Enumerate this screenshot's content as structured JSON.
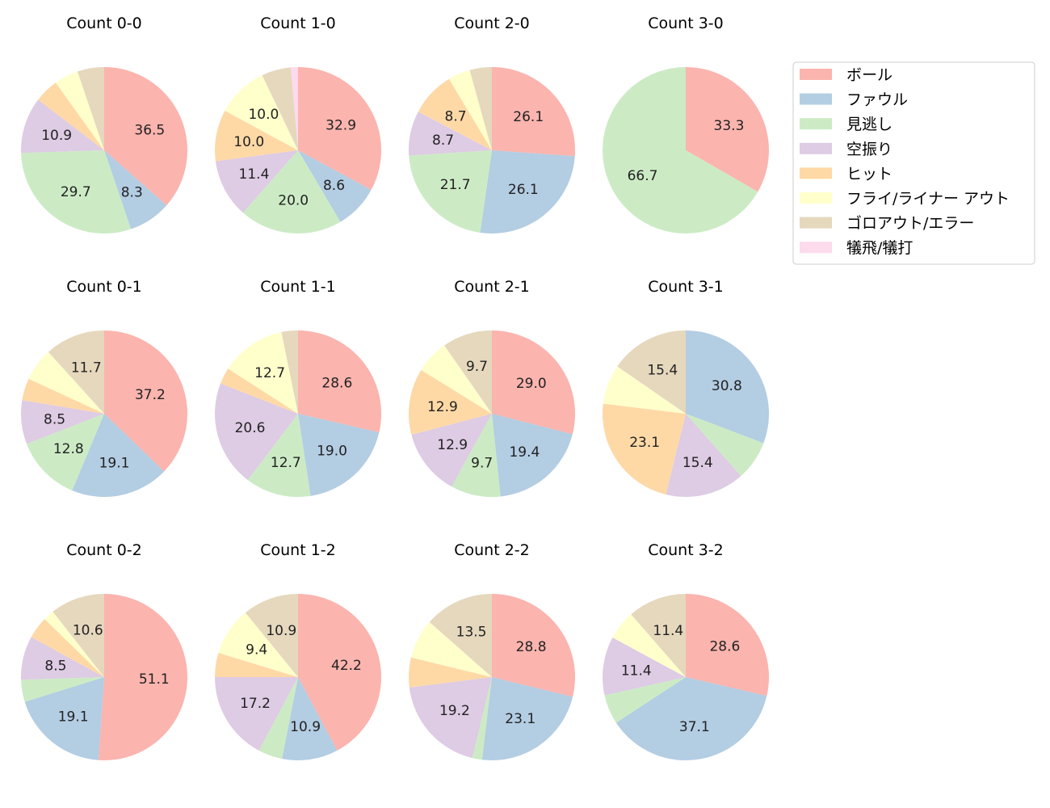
{
  "chart_data": {
    "type": "pie",
    "start_angle_deg": 90,
    "direction": "clockwise",
    "label_threshold_percent": 8,
    "legend": {
      "placement": "top-right",
      "entries": [
        "ボール",
        "ファウル",
        "見逃し",
        "空振り",
        "ヒット",
        "フライ/ライナー アウト",
        "ゴロアウト/エラー",
        "犠飛/犠打"
      ],
      "colors": [
        "#fbb4ae",
        "#b3cde3",
        "#ccebc5",
        "#decbe4",
        "#fed9a6",
        "#ffffcc",
        "#e5d8bd",
        "#fddaec"
      ]
    },
    "charts": [
      {
        "title": "Count 0-0",
        "values": [
          36.5,
          8.3,
          29.7,
          10.9,
          4.7,
          4.7,
          5.2,
          0
        ]
      },
      {
        "title": "Count 1-0",
        "values": [
          32.9,
          8.6,
          20.0,
          11.4,
          10.0,
          10.0,
          5.7,
          1.4
        ]
      },
      {
        "title": "Count 2-0",
        "values": [
          26.1,
          26.1,
          21.7,
          8.7,
          8.7,
          4.3,
          4.3,
          0
        ]
      },
      {
        "title": "Count 3-0",
        "values": [
          33.3,
          0,
          66.7,
          0,
          0,
          0,
          0,
          0
        ]
      },
      {
        "title": "Count 0-1",
        "values": [
          37.2,
          19.1,
          12.8,
          8.5,
          4.3,
          6.4,
          11.7,
          0
        ]
      },
      {
        "title": "Count 1-1",
        "values": [
          28.6,
          19.0,
          12.7,
          20.6,
          3.2,
          12.7,
          3.2,
          0
        ]
      },
      {
        "title": "Count 2-1",
        "values": [
          29.0,
          19.4,
          9.7,
          12.9,
          12.9,
          6.5,
          9.7,
          0
        ]
      },
      {
        "title": "Count 3-1",
        "values": [
          0,
          30.8,
          7.7,
          15.4,
          23.1,
          7.7,
          15.4,
          0
        ]
      },
      {
        "title": "Count 0-2",
        "values": [
          51.1,
          19.1,
          4.3,
          8.5,
          4.3,
          2.1,
          10.6,
          0
        ]
      },
      {
        "title": "Count 1-2",
        "values": [
          42.2,
          10.9,
          4.7,
          17.2,
          4.7,
          9.4,
          10.9,
          0
        ]
      },
      {
        "title": "Count 2-2",
        "values": [
          28.8,
          23.1,
          1.9,
          19.2,
          5.8,
          7.7,
          13.5,
          0
        ]
      },
      {
        "title": "Count 3-2",
        "values": [
          28.6,
          37.1,
          5.7,
          11.4,
          0,
          5.7,
          11.4,
          0
        ]
      }
    ]
  }
}
